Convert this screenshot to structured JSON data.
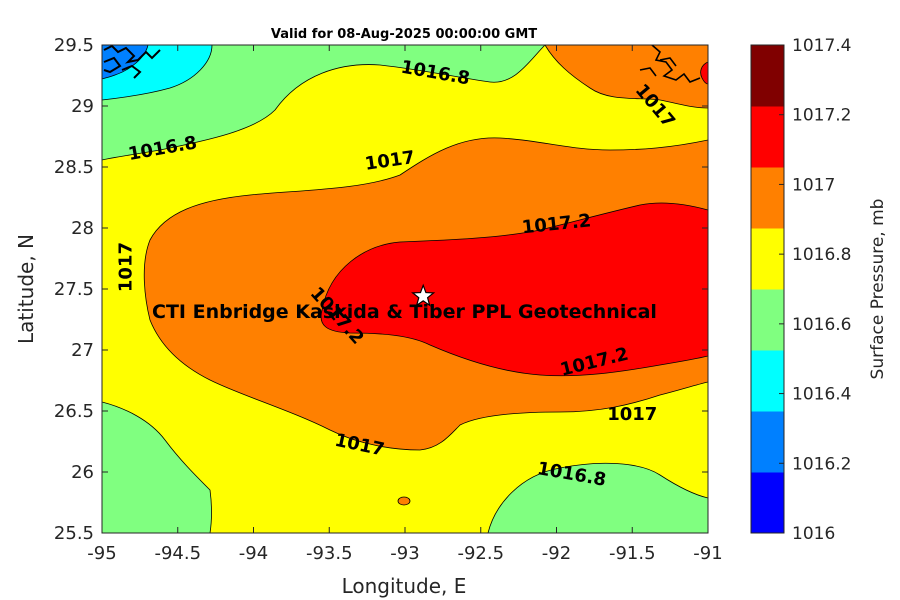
{
  "title": "Valid for 08-Aug-2025 00:00:00 GMT",
  "map": {
    "xlabel": "Longitude, E",
    "ylabel": "Latitude, N",
    "xlim": [
      -95,
      -91
    ],
    "ylim": [
      25.5,
      29.5
    ],
    "xticks": [
      "-95",
      "-94.5",
      "-94",
      "-93.5",
      "-93",
      "-92.5",
      "-92",
      "-91.5",
      "-91"
    ],
    "yticks": [
      "25.5",
      "26",
      "26.5",
      "27",
      "27.5",
      "28",
      "28.5",
      "29",
      "29.5"
    ],
    "site_label": "CTI Enbridge  Kaskida & Tiber PPL Geotechnical",
    "site_marker": {
      "lon": -92.88,
      "lat": 27.44,
      "icon": "star-icon"
    },
    "contour_labels": [
      {
        "text": "1016.8",
        "lon": -92.8,
        "lat": 29.27,
        "angle": 10
      },
      {
        "text": "1016.8",
        "lon": -94.6,
        "lat": 28.65,
        "angle": -10
      },
      {
        "text": "1017",
        "lon": -93.1,
        "lat": 28.55,
        "angle": -8
      },
      {
        "text": "1017",
        "lon": -91.35,
        "lat": 29.0,
        "angle": 50
      },
      {
        "text": "1017",
        "lon": -94.84,
        "lat": 27.68,
        "angle": -90
      },
      {
        "text": "1017.2",
        "lon": -92.0,
        "lat": 28.03,
        "angle": -6
      },
      {
        "text": "1017.2",
        "lon": -93.45,
        "lat": 27.28,
        "angle": 48
      },
      {
        "text": "1017.2",
        "lon": -91.75,
        "lat": 26.9,
        "angle": -14
      },
      {
        "text": "1017",
        "lon": -91.5,
        "lat": 26.47,
        "angle": 0
      },
      {
        "text": "1017",
        "lon": -93.3,
        "lat": 26.22,
        "angle": 12
      },
      {
        "text": "1016.8",
        "lon": -91.9,
        "lat": 25.98,
        "angle": 10
      }
    ]
  },
  "colorbar": {
    "label": "Surface Pressure, mb",
    "ticks": [
      "1016",
      "1016.2",
      "1016.4",
      "1016.6",
      "1016.8",
      "1017",
      "1017.2",
      "1017.4"
    ],
    "range": [
      1016,
      1017.4
    ],
    "levels": [
      {
        "min": 1016.0,
        "max": 1016.2,
        "color": "#0000ff"
      },
      {
        "min": 1016.2,
        "max": 1016.4,
        "color": "#0080ff"
      },
      {
        "min": 1016.4,
        "max": 1016.6,
        "color": "#00ffff"
      },
      {
        "min": 1016.6,
        "max": 1016.8,
        "color": "#80ff80"
      },
      {
        "min": 1016.8,
        "max": 1017.0,
        "color": "#ffff00"
      },
      {
        "min": 1017.0,
        "max": 1017.2,
        "color": "#ff8000"
      },
      {
        "min": 1017.2,
        "max": 1017.4,
        "color": "#ff0000"
      }
    ],
    "top_color": "#800000"
  }
}
